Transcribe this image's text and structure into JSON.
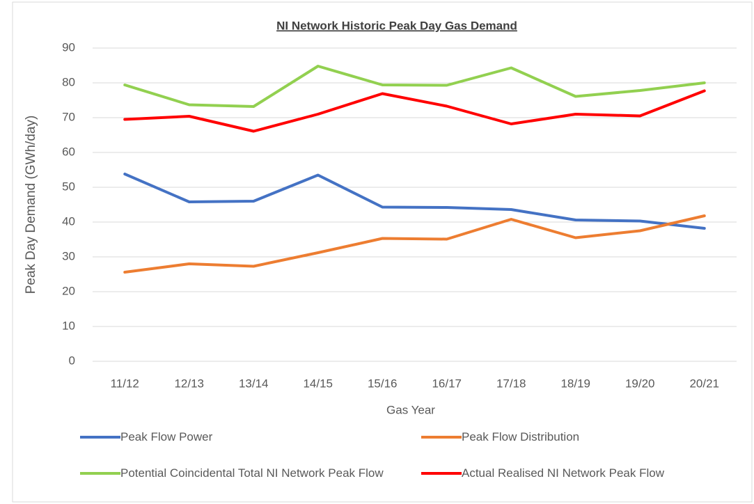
{
  "chart_data": {
    "type": "line",
    "title": "NI Network Historic Peak Day Gas Demand",
    "x_label": "Gas Year",
    "y_label": "Peak Day Demand (GWh/day)",
    "categories": [
      "11/12",
      "12/13",
      "13/14",
      "14/15",
      "15/16",
      "16/17",
      "17/18",
      "18/19",
      "19/20",
      "20/21"
    ],
    "series": [
      {
        "name": "Peak Flow Power",
        "color": "#4472c4",
        "values": [
          53.8,
          45.8,
          46.0,
          53.5,
          44.3,
          44.2,
          43.6,
          40.6,
          40.3,
          38.2
        ]
      },
      {
        "name": "Peak Flow Distribution",
        "color": "#ed7d31",
        "values": [
          25.6,
          28.0,
          27.3,
          31.2,
          35.3,
          35.1,
          40.8,
          35.5,
          37.5,
          41.8
        ]
      },
      {
        "name": "Potential Coincidental Total NI Network Peak Flow",
        "color": "#92d050",
        "values": [
          79.4,
          73.7,
          73.2,
          84.8,
          79.4,
          79.3,
          84.3,
          76.1,
          77.8,
          80.0
        ]
      },
      {
        "name": "Actual Realised NI Network Peak Flow",
        "color": "#ff0000",
        "values": [
          69.5,
          70.4,
          66.1,
          71.0,
          76.9,
          73.3,
          68.2,
          71.0,
          70.5,
          77.7
        ]
      }
    ],
    "ylim": [
      0,
      90
    ],
    "yticks": [
      0,
      10,
      20,
      30,
      40,
      50,
      60,
      70,
      80,
      90
    ],
    "grid": true
  }
}
